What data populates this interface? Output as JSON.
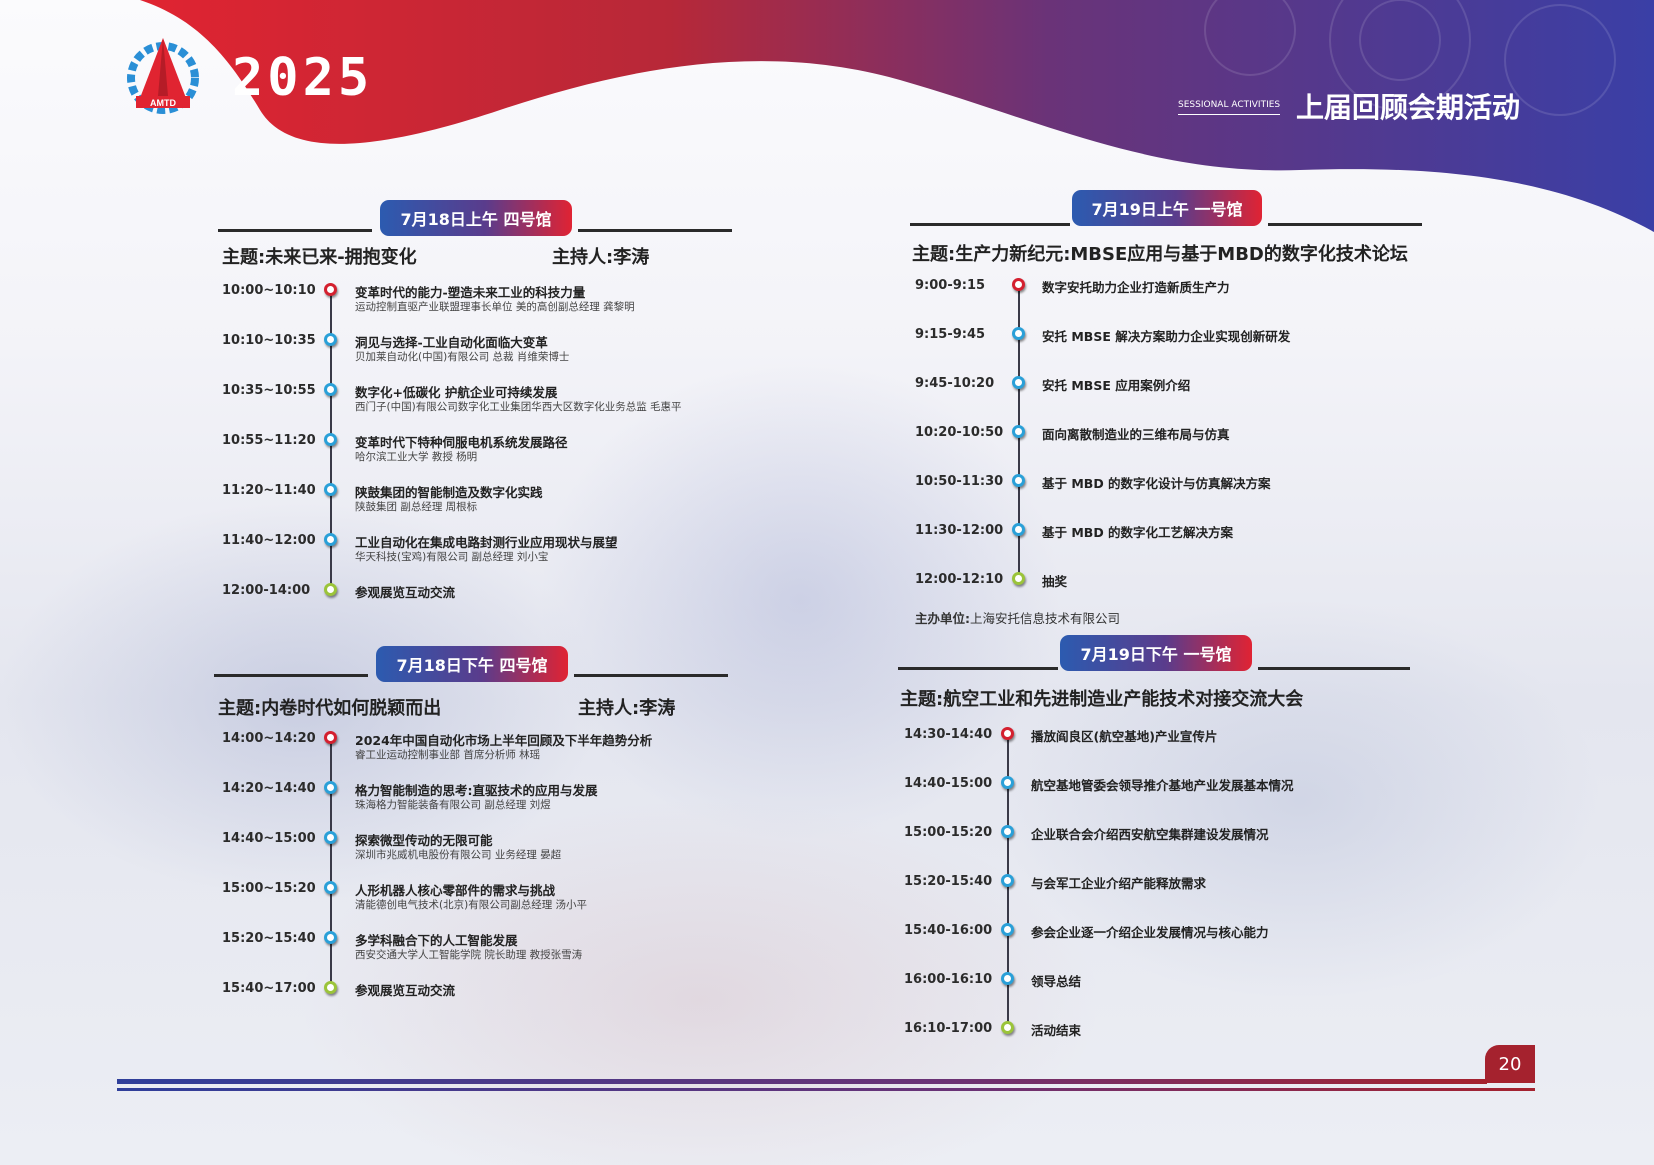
{
  "header": {
    "year": "2025",
    "logo_text": "AMTD",
    "section_en": "SESSIONAL ACTIVITIES",
    "section_cn": "上届回顾会期活动"
  },
  "colors": {
    "red": "#e02333",
    "blue": "#2c5bb0",
    "purple": "#5a3c8c",
    "dot_start": "#d4202f",
    "dot_mid": "#2aa0d8",
    "dot_end": "#9bc43a"
  },
  "sessions": [
    {
      "pill": "7月18日上午  四号馆",
      "theme": "主题:未来已来-拥抱变化",
      "host": "主持人:李涛",
      "items": [
        {
          "time": "10:00~10:10",
          "title": "变革时代的能力-塑造未来工业的科技力量",
          "sub": "运动控制直驱产业联盟理事长单位 美的高创副总经理 龚黎明",
          "dot": "red"
        },
        {
          "time": "10:10~10:35",
          "title": "洞见与选择-工业自动化面临大变革",
          "sub": "贝加莱自动化(中国)有限公司 总裁 肖维荣博士",
          "dot": "blue"
        },
        {
          "time": "10:35~10:55",
          "title": "数字化+低碳化 护航企业可持续发展",
          "sub": "西门子(中国)有限公司数字化工业集团华西大区数字化业务总监 毛惠平",
          "dot": "blue"
        },
        {
          "time": "10:55~11:20",
          "title": "变革时代下特种伺服电机系统发展路径",
          "sub": "哈尔滨工业大学 教授 杨明",
          "dot": "blue"
        },
        {
          "time": "11:20~11:40",
          "title": "陕鼓集团的智能制造及数字化实践",
          "sub": "陕鼓集团 副总经理 周根标",
          "dot": "blue"
        },
        {
          "time": "11:40~12:00",
          "title": "工业自动化在集成电路封测行业应用现状与展望",
          "sub": "华天科技(宝鸡)有限公司 副总经理 刘小宝",
          "dot": "blue"
        },
        {
          "time": "12:00-14:00",
          "title": "参观展览互动交流",
          "sub": "",
          "dot": "green"
        }
      ]
    },
    {
      "pill": "7月18日下午  四号馆",
      "theme": "主题:内卷时代如何脱颖而出",
      "host": "主持人:李涛",
      "items": [
        {
          "time": "14:00~14:20",
          "title": "2024年中国自动化市场上半年回顾及下半年趋势分析",
          "sub": "睿工业运动控制事业部 首席分析师 林瑶",
          "dot": "red"
        },
        {
          "time": "14:20~14:40",
          "title": "格力智能制造的思考:直驱技术的应用与发展",
          "sub": "珠海格力智能装备有限公司 副总经理 刘煜",
          "dot": "blue"
        },
        {
          "time": "14:40~15:00",
          "title": "探索微型传动的无限可能",
          "sub": "深圳市兆威机电股份有限公司 业务经理 晏超",
          "dot": "blue"
        },
        {
          "time": "15:00~15:20",
          "title": "人形机器人核心零部件的需求与挑战",
          "sub": "清能德创电气技术(北京)有限公司副总经理 汤小平",
          "dot": "blue"
        },
        {
          "time": "15:20~15:40",
          "title": "多学科融合下的人工智能发展",
          "sub": "西安交通大学人工智能学院 院长助理 教授张雪涛",
          "dot": "blue"
        },
        {
          "time": "15:40~17:00",
          "title": "参观展览互动交流",
          "sub": "",
          "dot": "green"
        }
      ]
    },
    {
      "pill": "7月19日上午  一号馆",
      "theme": "主题:生产力新纪元:MBSE应用与基于MBD的数字化技术论坛",
      "host": "",
      "sponsor_label": "主办单位:",
      "sponsor": "上海安托信息技术有限公司",
      "items": [
        {
          "time": "9:00-9:15",
          "title": "数字安托助力企业打造新质生产力",
          "sub": "",
          "dot": "red"
        },
        {
          "time": "9:15-9:45",
          "title": "安托 MBSE 解决方案助力企业实现创新研发",
          "sub": "",
          "dot": "blue"
        },
        {
          "time": "9:45-10:20",
          "title": "安托 MBSE 应用案例介绍",
          "sub": "",
          "dot": "blue"
        },
        {
          "time": "10:20-10:50",
          "title": "面向离散制造业的三维布局与仿真",
          "sub": "",
          "dot": "blue"
        },
        {
          "time": "10:50-11:30",
          "title": "基于 MBD 的数字化设计与仿真解决方案",
          "sub": "",
          "dot": "blue"
        },
        {
          "time": "11:30-12:00",
          "title": "基于 MBD 的数字化工艺解决方案",
          "sub": "",
          "dot": "blue"
        },
        {
          "time": "12:00-12:10",
          "title": "抽奖",
          "sub": "",
          "dot": "green"
        }
      ]
    },
    {
      "pill": "7月19日下午  一号馆",
      "theme": "主题:航空工业和先进制造业产能技术对接交流大会",
      "host": "",
      "items": [
        {
          "time": "14:30-14:40",
          "title": "播放阎良区(航空基地)产业宣传片",
          "sub": "",
          "dot": "red"
        },
        {
          "time": "14:40-15:00",
          "title": "航空基地管委会领导推介基地产业发展基本情况",
          "sub": "",
          "dot": "blue"
        },
        {
          "time": "15:00-15:20",
          "title": "企业联合会介绍西安航空集群建设发展情况",
          "sub": "",
          "dot": "blue"
        },
        {
          "time": "15:20-15:40",
          "title": "与会军工企业介绍产能释放需求",
          "sub": "",
          "dot": "blue"
        },
        {
          "time": "15:40-16:00",
          "title": "参会企业逐一介绍企业发展情况与核心能力",
          "sub": "",
          "dot": "blue"
        },
        {
          "time": "16:00-16:10",
          "title": "领导总结",
          "sub": "",
          "dot": "blue"
        },
        {
          "time": "16:10-17:00",
          "title": "活动结束",
          "sub": "",
          "dot": "green"
        }
      ]
    }
  ],
  "page_number": "20"
}
